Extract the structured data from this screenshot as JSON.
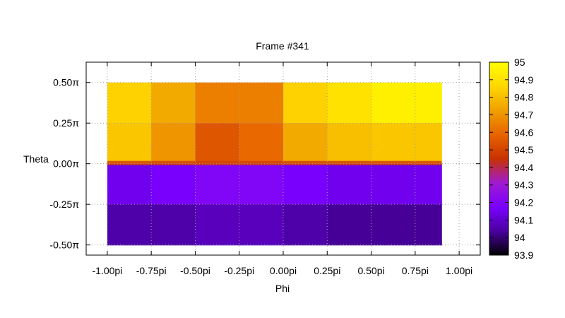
{
  "chart_data": {
    "type": "heatmap",
    "title": "Frame #341",
    "xlabel": "Phi",
    "ylabel": "Theta",
    "xlim": [
      -1.12,
      1.12
    ],
    "ylim": [
      -0.5625,
      0.625
    ],
    "x_ticks": [
      {
        "value": -1.0,
        "label": "-1.00pi"
      },
      {
        "value": -0.75,
        "label": "-0.75pi"
      },
      {
        "value": -0.5,
        "label": "-0.50pi"
      },
      {
        "value": -0.25,
        "label": "-0.25pi"
      },
      {
        "value": 0.0,
        "label": "0.00pi"
      },
      {
        "value": 0.25,
        "label": "0.25pi"
      },
      {
        "value": 0.5,
        "label": "0.50pi"
      },
      {
        "value": 0.75,
        "label": "0.75pi"
      },
      {
        "value": 1.0,
        "label": "1.00pi"
      }
    ],
    "y_ticks": [
      {
        "value": 0.5,
        "label": "0.50π"
      },
      {
        "value": 0.25,
        "label": "0.25π"
      },
      {
        "value": 0.0,
        "label": "0.00π"
      },
      {
        "value": -0.25,
        "label": "-0.25π"
      },
      {
        "value": -0.5,
        "label": "-0.50π"
      }
    ],
    "grid": true,
    "data_extent": {
      "x": [
        -1.0,
        0.9
      ],
      "y": [
        -0.5,
        0.5
      ]
    },
    "cells": [
      {
        "x": [
          -1.0,
          -0.75
        ],
        "y": [
          0.25,
          0.5
        ],
        "value": 94.85
      },
      {
        "x": [
          -1.0,
          -0.75
        ],
        "y": [
          0.0,
          0.25
        ],
        "value": 94.82
      },
      {
        "x": [
          -1.0,
          -0.75
        ],
        "y": [
          -0.25,
          0.0
        ],
        "value": 94.15
      },
      {
        "x": [
          -1.0,
          -0.75
        ],
        "y": [
          -0.5,
          -0.25
        ],
        "value": 94.05
      },
      {
        "x": [
          -0.75,
          -0.5
        ],
        "y": [
          0.25,
          0.5
        ],
        "value": 94.75
      },
      {
        "x": [
          -0.75,
          -0.5
        ],
        "y": [
          0.0,
          0.25
        ],
        "value": 94.7
      },
      {
        "x": [
          -0.75,
          -0.5
        ],
        "y": [
          -0.25,
          0.0
        ],
        "value": 94.17
      },
      {
        "x": [
          -0.75,
          -0.5
        ],
        "y": [
          -0.5,
          -0.25
        ],
        "value": 94.05
      },
      {
        "x": [
          -0.5,
          -0.25
        ],
        "y": [
          0.25,
          0.5
        ],
        "value": 94.65
      },
      {
        "x": [
          -0.5,
          -0.25
        ],
        "y": [
          0.0,
          0.25
        ],
        "value": 94.55
      },
      {
        "x": [
          -0.5,
          -0.25
        ],
        "y": [
          -0.25,
          0.0
        ],
        "value": 94.2
      },
      {
        "x": [
          -0.5,
          -0.25
        ],
        "y": [
          -0.5,
          -0.25
        ],
        "value": 94.08
      },
      {
        "x": [
          -0.25,
          0.0
        ],
        "y": [
          0.25,
          0.5
        ],
        "value": 94.65
      },
      {
        "x": [
          -0.25,
          0.0
        ],
        "y": [
          0.0,
          0.25
        ],
        "value": 94.6
      },
      {
        "x": [
          -0.25,
          0.0
        ],
        "y": [
          -0.25,
          0.0
        ],
        "value": 94.2
      },
      {
        "x": [
          -0.25,
          0.0
        ],
        "y": [
          -0.5,
          -0.25
        ],
        "value": 94.08
      },
      {
        "x": [
          0.0,
          0.25
        ],
        "y": [
          0.25,
          0.5
        ],
        "value": 94.85
      },
      {
        "x": [
          0.0,
          0.25
        ],
        "y": [
          0.0,
          0.25
        ],
        "value": 94.75
      },
      {
        "x": [
          0.0,
          0.25
        ],
        "y": [
          -0.25,
          0.0
        ],
        "value": 94.17
      },
      {
        "x": [
          0.0,
          0.25
        ],
        "y": [
          -0.5,
          -0.25
        ],
        "value": 94.05
      },
      {
        "x": [
          0.25,
          0.5
        ],
        "y": [
          0.25,
          0.5
        ],
        "value": 94.9
      },
      {
        "x": [
          0.25,
          0.5
        ],
        "y": [
          0.0,
          0.25
        ],
        "value": 94.8
      },
      {
        "x": [
          0.25,
          0.5
        ],
        "y": [
          -0.25,
          0.0
        ],
        "value": 94.15
      },
      {
        "x": [
          0.25,
          0.5
        ],
        "y": [
          -0.5,
          -0.25
        ],
        "value": 94.03
      },
      {
        "x": [
          0.5,
          0.75
        ],
        "y": [
          0.25,
          0.5
        ],
        "value": 94.95
      },
      {
        "x": [
          0.5,
          0.75
        ],
        "y": [
          0.0,
          0.25
        ],
        "value": 94.82
      },
      {
        "x": [
          0.5,
          0.75
        ],
        "y": [
          -0.25,
          0.0
        ],
        "value": 94.15
      },
      {
        "x": [
          0.5,
          0.75
        ],
        "y": [
          -0.5,
          -0.25
        ],
        "value": 94.03
      },
      {
        "x": [
          0.75,
          0.9
        ],
        "y": [
          0.25,
          0.5
        ],
        "value": 94.95
      },
      {
        "x": [
          0.75,
          0.9
        ],
        "y": [
          0.0,
          0.25
        ],
        "value": 94.82
      },
      {
        "x": [
          0.75,
          0.9
        ],
        "y": [
          -0.25,
          0.0
        ],
        "value": 94.15
      },
      {
        "x": [
          0.75,
          0.9
        ],
        "y": [
          -0.5,
          -0.25
        ],
        "value": 94.03
      }
    ],
    "colorbar": {
      "range": [
        93.9,
        95.0
      ],
      "ticks": [
        {
          "value": 95.0,
          "label": "95"
        },
        {
          "value": 94.9,
          "label": "94.9"
        },
        {
          "value": 94.8,
          "label": "94.8"
        },
        {
          "value": 94.7,
          "label": "94.7"
        },
        {
          "value": 94.6,
          "label": "94.6"
        },
        {
          "value": 94.5,
          "label": "94.5"
        },
        {
          "value": 94.4,
          "label": "94.4"
        },
        {
          "value": 94.3,
          "label": "94.3"
        },
        {
          "value": 94.2,
          "label": "94.2"
        },
        {
          "value": 94.1,
          "label": "94.1"
        },
        {
          "value": 94.0,
          "label": "94"
        },
        {
          "value": 93.9,
          "label": "93.9"
        }
      ],
      "palette": [
        "#000000",
        "#4a00a0",
        "#7a00ff",
        "#a01ad0",
        "#c83200",
        "#e86400",
        "#f0a000",
        "#ffd700",
        "#ffff00"
      ]
    }
  }
}
